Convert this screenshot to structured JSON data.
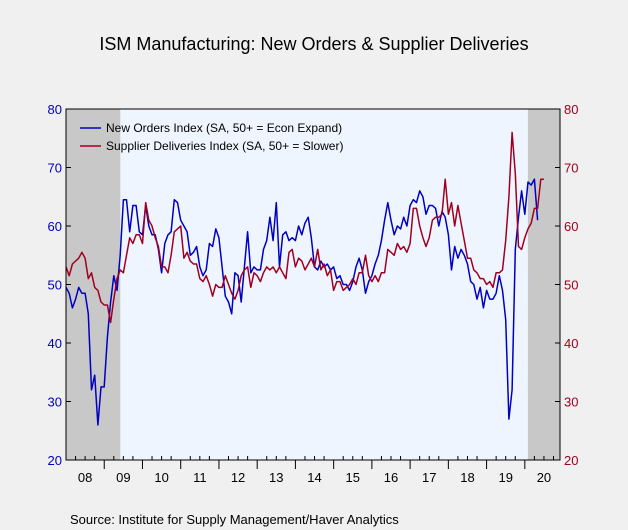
{
  "chart_data": {
    "type": "line",
    "title": "ISM Manufacturing: New Orders & Supplier Deliveries",
    "source": "Source:  Institute for Supply Management/Haver Analytics",
    "xlim": [
      2008,
      2020.92
    ],
    "ylim": [
      20,
      80
    ],
    "y_ticks": [
      20,
      30,
      40,
      50,
      60,
      70,
      80
    ],
    "x_tick_labels": [
      "08",
      "09",
      "10",
      "11",
      "12",
      "13",
      "14",
      "15",
      "16",
      "17",
      "18",
      "19",
      "20"
    ],
    "recessions": [
      [
        2008,
        2009.42
      ],
      [
        2020.08,
        2020.92
      ]
    ],
    "legend_position": "top-left",
    "grid": false,
    "colors": {
      "new_orders": "#0000c0",
      "supplier": "#a00020",
      "plot_bg": "#eef5ff",
      "recession_bg": "#c8c8c8",
      "page_bg": "#f0f0f0"
    },
    "series": [
      {
        "name": "New Orders Index (SA, 50+ = Econ Expand)",
        "key": "new_orders",
        "start": 2008.0,
        "step": 0.0833333,
        "values": [
          49.5,
          48.5,
          46.0,
          47.5,
          49.5,
          48.5,
          48.5,
          45.0,
          32.0,
          34.5,
          26.0,
          32.5,
          32.5,
          41.0,
          47.0,
          51.5,
          49.0,
          55.0,
          64.5,
          64.5,
          59.0,
          63.5,
          63.5,
          59.0,
          58.5,
          63.5,
          60.0,
          58.5,
          58.5,
          56.0,
          52.0,
          57.0,
          58.5,
          59.0,
          64.5,
          64.0,
          61.0,
          60.0,
          59.0,
          55.0,
          55.5,
          56.5,
          53.0,
          51.5,
          52.5,
          57.0,
          56.5,
          59.5,
          58.0,
          53.0,
          48.0,
          47.0,
          45.0,
          52.0,
          51.5,
          47.0,
          53.0,
          59.0,
          52.0,
          53.0,
          52.5,
          52.5,
          56.0,
          57.5,
          61.5,
          57.5,
          64.0,
          53.0,
          58.5,
          59.0,
          57.5,
          58.0,
          57.5,
          60.0,
          58.5,
          60.5,
          61.5,
          58.0,
          53.0,
          52.5,
          54.0,
          53.0,
          53.5,
          52.5,
          53.0,
          51.0,
          51.5,
          50.0,
          50.0,
          49.0,
          50.5,
          53.0,
          54.5,
          52.5,
          48.5,
          50.5,
          51.5,
          53.5,
          55.0,
          57.5,
          61.0,
          64.0,
          61.0,
          58.5,
          60.0,
          59.5,
          61.5,
          60.0,
          63.5,
          64.5,
          64.0,
          66.0,
          65.0,
          62.0,
          63.5,
          63.5,
          63.0,
          60.0,
          62.5,
          61.5,
          58.5,
          52.5,
          56.5,
          54.5,
          56.0,
          55.0,
          53.5,
          50.5,
          50.0,
          47.5,
          49.5,
          46.0,
          49.0,
          47.5,
          47.5,
          48.5,
          51.5,
          49.0,
          44.0,
          27.0,
          32.0,
          56.0,
          61.5,
          66.0,
          62.0,
          67.5,
          67.0,
          68.0,
          61.0
        ]
      },
      {
        "name": "Supplier Deliveries Index (SA, 50+ = Slower)",
        "key": "supplier",
        "start": 2008.0,
        "step": 0.0833333,
        "values": [
          53.0,
          51.5,
          53.5,
          54.0,
          54.5,
          55.5,
          54.5,
          51.0,
          52.0,
          49.5,
          49.0,
          47.0,
          46.5,
          46.5,
          43.5,
          47.5,
          51.0,
          52.5,
          52.0,
          55.0,
          58.0,
          57.0,
          58.5,
          58.5,
          57.0,
          64.0,
          61.0,
          60.0,
          58.0,
          56.5,
          53.0,
          53.0,
          52.0,
          55.0,
          59.0,
          59.5,
          60.0,
          54.5,
          55.5,
          54.0,
          53.5,
          53.5,
          51.0,
          50.5,
          51.5,
          50.0,
          48.0,
          50.0,
          49.5,
          49.5,
          51.5,
          50.0,
          48.5,
          47.5,
          49.0,
          51.5,
          52.5,
          53.0,
          49.5,
          52.0,
          51.5,
          50.5,
          52.0,
          53.0,
          52.5,
          53.0,
          52.0,
          53.0,
          52.0,
          51.0,
          55.5,
          56.0,
          53.0,
          54.5,
          54.0,
          52.5,
          53.5,
          54.5,
          53.0,
          56.0,
          52.5,
          53.5,
          51.5,
          52.5,
          49.0,
          50.5,
          50.5,
          49.0,
          49.5,
          50.0,
          51.0,
          50.0,
          52.0,
          52.0,
          55.0,
          51.5,
          50.5,
          51.5,
          50.5,
          52.0,
          52.0,
          56.0,
          55.5,
          55.0,
          57.0,
          56.0,
          56.5,
          55.5,
          57.0,
          63.0,
          63.0,
          60.0,
          58.0,
          56.5,
          58.0,
          61.0,
          61.5,
          61.5,
          62.0,
          68.0,
          62.0,
          64.0,
          60.0,
          63.5,
          60.5,
          57.5,
          54.5,
          54.5,
          52.5,
          52.0,
          51.0,
          51.0,
          50.0,
          50.5,
          49.5,
          52.0,
          52.0,
          52.5,
          57.5,
          65.0,
          76.0,
          69.0,
          56.5,
          56.0,
          58.0,
          59.5,
          60.5,
          63.0,
          63.0,
          68.0,
          68.0
        ]
      }
    ]
  }
}
